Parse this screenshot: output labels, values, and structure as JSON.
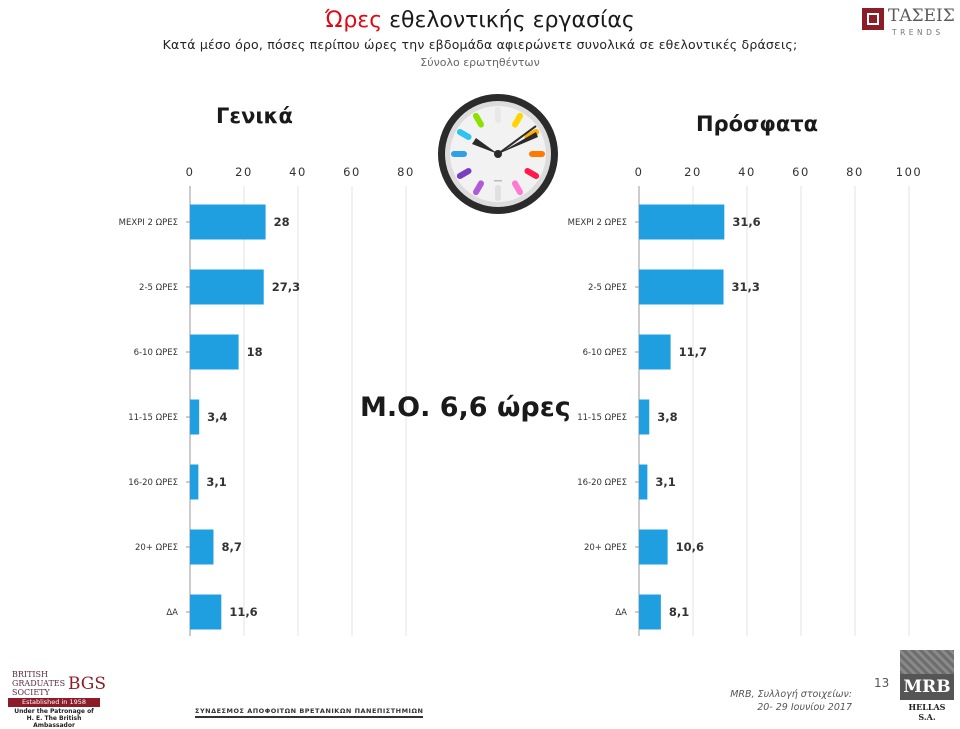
{
  "header": {
    "title_accent": "Ώρες",
    "title_rest": " εθελοντικής εργασίας",
    "subtitle": "Κατά μέσο όρο, πόσες περίπου ώρες την εβδομάδα αφιερώνετε συνολικά σε εθελοντικές δράσεις;",
    "base": "Σύνολο ερωτηθέντων"
  },
  "brand": {
    "tr_name": "ΤΑΣΕΙΣ",
    "tr_sub": "TRENDS",
    "mrb_name": "MRB",
    "mrb_sub": "HELLAS S.A.",
    "bgs_line1": "BRITISH",
    "bgs_line2": "GRADUATES",
    "bgs_line3": "SOCIETY",
    "bgs_big": "BGS",
    "bgs_est": "Established in 1958",
    "bgs_pat1": "Under the Patronage of",
    "bgs_pat2": "H. E. The British Ambassador",
    "association": "ΣΥΝΔΕΣΜΟΣ ΑΠΟΦΟΙΤΩΝ ΒΡΕΤΑΝΙΚΩΝ ΠΑΝΕΠΙΣΤΗΜΙΩΝ"
  },
  "average_label": "Μ.Ο. 6,6 ώρες",
  "footer": {
    "page_number": "13",
    "note_line1": "MRB, Συλλογή στοιχείων:",
    "note_line2": "20- 29 Ιουνίου 2017"
  },
  "colors": {
    "bar": "#1f9fe0",
    "accent": "#e30613"
  },
  "chart_data": [
    {
      "type": "bar",
      "orientation": "horizontal",
      "title": "Γενικά",
      "categories": [
        "ΜΕΧΡΙ 2 ΩΡΕΣ",
        "2-5 ΩΡΕΣ",
        "6-10 ΩΡΕΣ",
        "11-15 ΩΡΕΣ",
        "16-20 ΩΡΕΣ",
        "20+ ΩΡΕΣ",
        "ΔΑ"
      ],
      "values": [
        28,
        27.3,
        18,
        3.4,
        3.1,
        8.7,
        11.6
      ],
      "value_labels": [
        "28",
        "27,3",
        "18",
        "3,4",
        "3,1",
        "8,7",
        "11,6"
      ],
      "xlim": [
        0,
        100
      ],
      "ticks": [
        "0",
        "20",
        "40",
        "60",
        "80"
      ],
      "grid": true
    },
    {
      "type": "bar",
      "orientation": "horizontal",
      "title": "Πρόσφατα",
      "categories": [
        "ΜΕΧΡΙ 2 ΩΡΕΣ",
        "2-5 ΩΡΕΣ",
        "6-10 ΩΡΕΣ",
        "11-15 ΩΡΕΣ",
        "16-20 ΩΡΕΣ",
        "20+ ΩΡΕΣ",
        "ΔΑ"
      ],
      "values": [
        31.6,
        31.3,
        11.7,
        3.8,
        3.1,
        10.6,
        8.1
      ],
      "value_labels": [
        "31,6",
        "31,3",
        "11,7",
        "3,8",
        "3,1",
        "10,6",
        "8,1"
      ],
      "xlim": [
        0,
        100
      ],
      "ticks": [
        "0",
        "20",
        "40",
        "60",
        "80",
        "100"
      ],
      "grid": true
    }
  ]
}
